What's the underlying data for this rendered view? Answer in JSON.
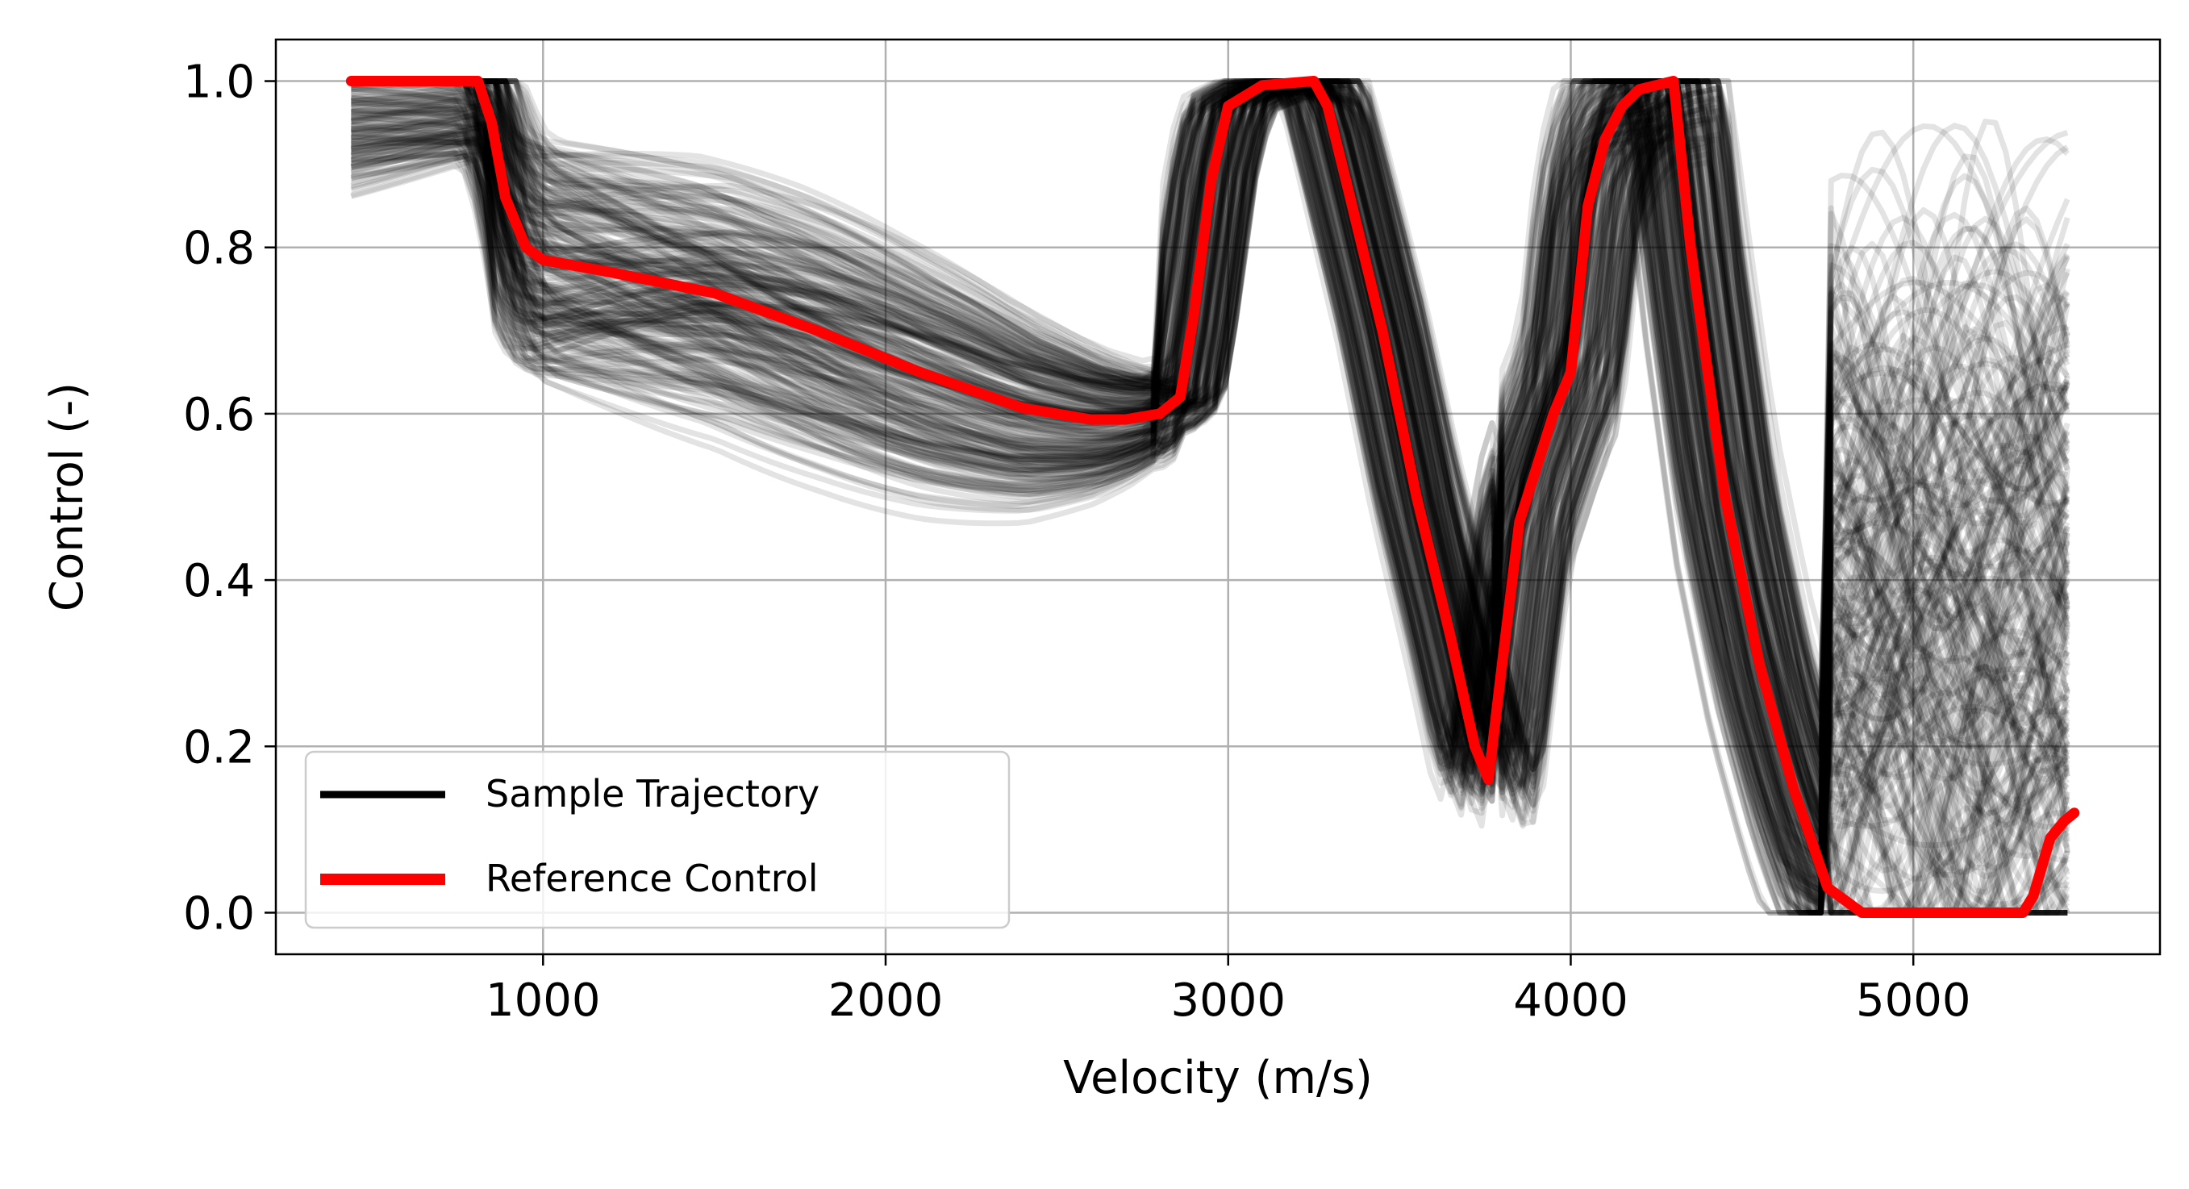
{
  "chart_data": {
    "type": "line",
    "title": "",
    "xlabel": "Velocity (m/s)",
    "ylabel": "Control (-)",
    "xlim": [
      220,
      5720
    ],
    "ylim": [
      -0.05,
      1.05
    ],
    "xticks": [
      1000,
      2000,
      3000,
      4000,
      5000
    ],
    "yticks": [
      0.0,
      0.2,
      0.4,
      0.6,
      0.8,
      1.0
    ],
    "ytick_labels": [
      "0.0",
      "0.2",
      "0.4",
      "0.6",
      "0.8",
      "1.0"
    ],
    "grid": true,
    "legend": {
      "placement": "lower-left",
      "entries": [
        {
          "label": "Sample Trajectory",
          "color": "#000000"
        },
        {
          "label": "Reference Control",
          "color": "#ff0000"
        }
      ]
    },
    "series": [
      {
        "name": "Reference Control",
        "color": "#ff0000",
        "points": [
          [
            440,
            1.0
          ],
          [
            810,
            1.0
          ],
          [
            850,
            0.95
          ],
          [
            890,
            0.86
          ],
          [
            950,
            0.8
          ],
          [
            1000,
            0.785
          ],
          [
            1200,
            0.77
          ],
          [
            1500,
            0.745
          ],
          [
            1800,
            0.7
          ],
          [
            2100,
            0.65
          ],
          [
            2400,
            0.607
          ],
          [
            2600,
            0.593
          ],
          [
            2700,
            0.593
          ],
          [
            2800,
            0.6
          ],
          [
            2860,
            0.62
          ],
          [
            2900,
            0.72
          ],
          [
            2950,
            0.88
          ],
          [
            3000,
            0.97
          ],
          [
            3100,
            0.995
          ],
          [
            3250,
            1.0
          ],
          [
            3290,
            0.97
          ],
          [
            3350,
            0.87
          ],
          [
            3450,
            0.7
          ],
          [
            3550,
            0.5
          ],
          [
            3650,
            0.33
          ],
          [
            3720,
            0.2
          ],
          [
            3760,
            0.16
          ],
          [
            3800,
            0.3
          ],
          [
            3850,
            0.47
          ],
          [
            3950,
            0.6
          ],
          [
            4000,
            0.65
          ],
          [
            4050,
            0.85
          ],
          [
            4100,
            0.93
          ],
          [
            4150,
            0.97
          ],
          [
            4200,
            0.99
          ],
          [
            4300,
            1.0
          ],
          [
            4350,
            0.8
          ],
          [
            4450,
            0.5
          ],
          [
            4550,
            0.3
          ],
          [
            4650,
            0.15
          ],
          [
            4750,
            0.03
          ],
          [
            4850,
            0.0
          ],
          [
            5000,
            0.0
          ],
          [
            5320,
            0.0
          ],
          [
            5350,
            0.02
          ],
          [
            5400,
            0.09
          ],
          [
            5440,
            0.11
          ],
          [
            5470,
            0.12
          ]
        ]
      }
    ],
    "sample_trajectories": {
      "name": "Sample Trajectory",
      "color": "#000000",
      "count": 240,
      "opacity": 0.11
    }
  }
}
